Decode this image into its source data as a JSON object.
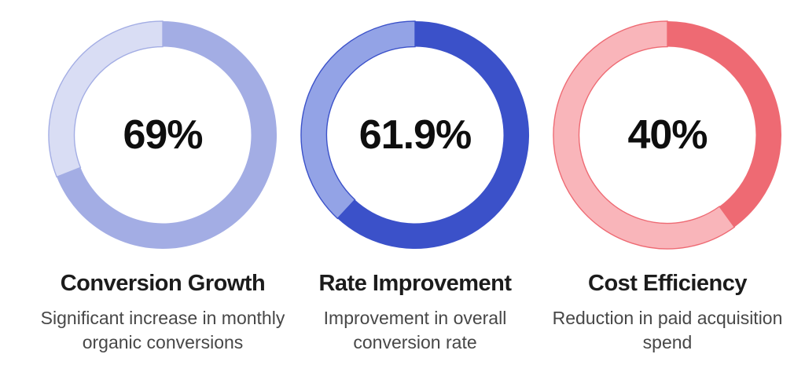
{
  "page": {
    "background": "#ffffff",
    "text_color": "#0e0e0e"
  },
  "chart_data": [
    {
      "type": "pie",
      "variant": "donut",
      "value": 69,
      "remainder": 31,
      "center_label": "69%",
      "title": "Conversion Growth",
      "subtitle": "Significant increase in monthly organic conversions",
      "subtitle_lines": [
        "Significant increase in monthly",
        "organic conversions"
      ],
      "colors": {
        "filled": "#a3ade4",
        "track": "#d9ddf4"
      },
      "start_angle_deg": 0,
      "direction": "clockwise"
    },
    {
      "type": "pie",
      "variant": "donut",
      "value": 61.9,
      "remainder": 38.1,
      "center_label": "61.9%",
      "title": "Rate Improvement",
      "subtitle": "Improvement in overall conversion rate",
      "subtitle_lines": [
        "Improvement in overall",
        "conversion rate"
      ],
      "colors": {
        "filled": "#3b51c9",
        "track": "#93a3e6"
      },
      "start_angle_deg": 0,
      "direction": "clockwise"
    },
    {
      "type": "pie",
      "variant": "donut",
      "value": 40,
      "remainder": 60,
      "center_label": "40%",
      "title": "Cost Efficiency",
      "subtitle": "Reduction in paid acquisition spend",
      "subtitle_lines": [
        "Reduction in paid acquisition",
        "spend"
      ],
      "colors": {
        "filled": "#ee6a73",
        "track": "#f9b5ba"
      },
      "start_angle_deg": 0,
      "direction": "clockwise"
    }
  ]
}
